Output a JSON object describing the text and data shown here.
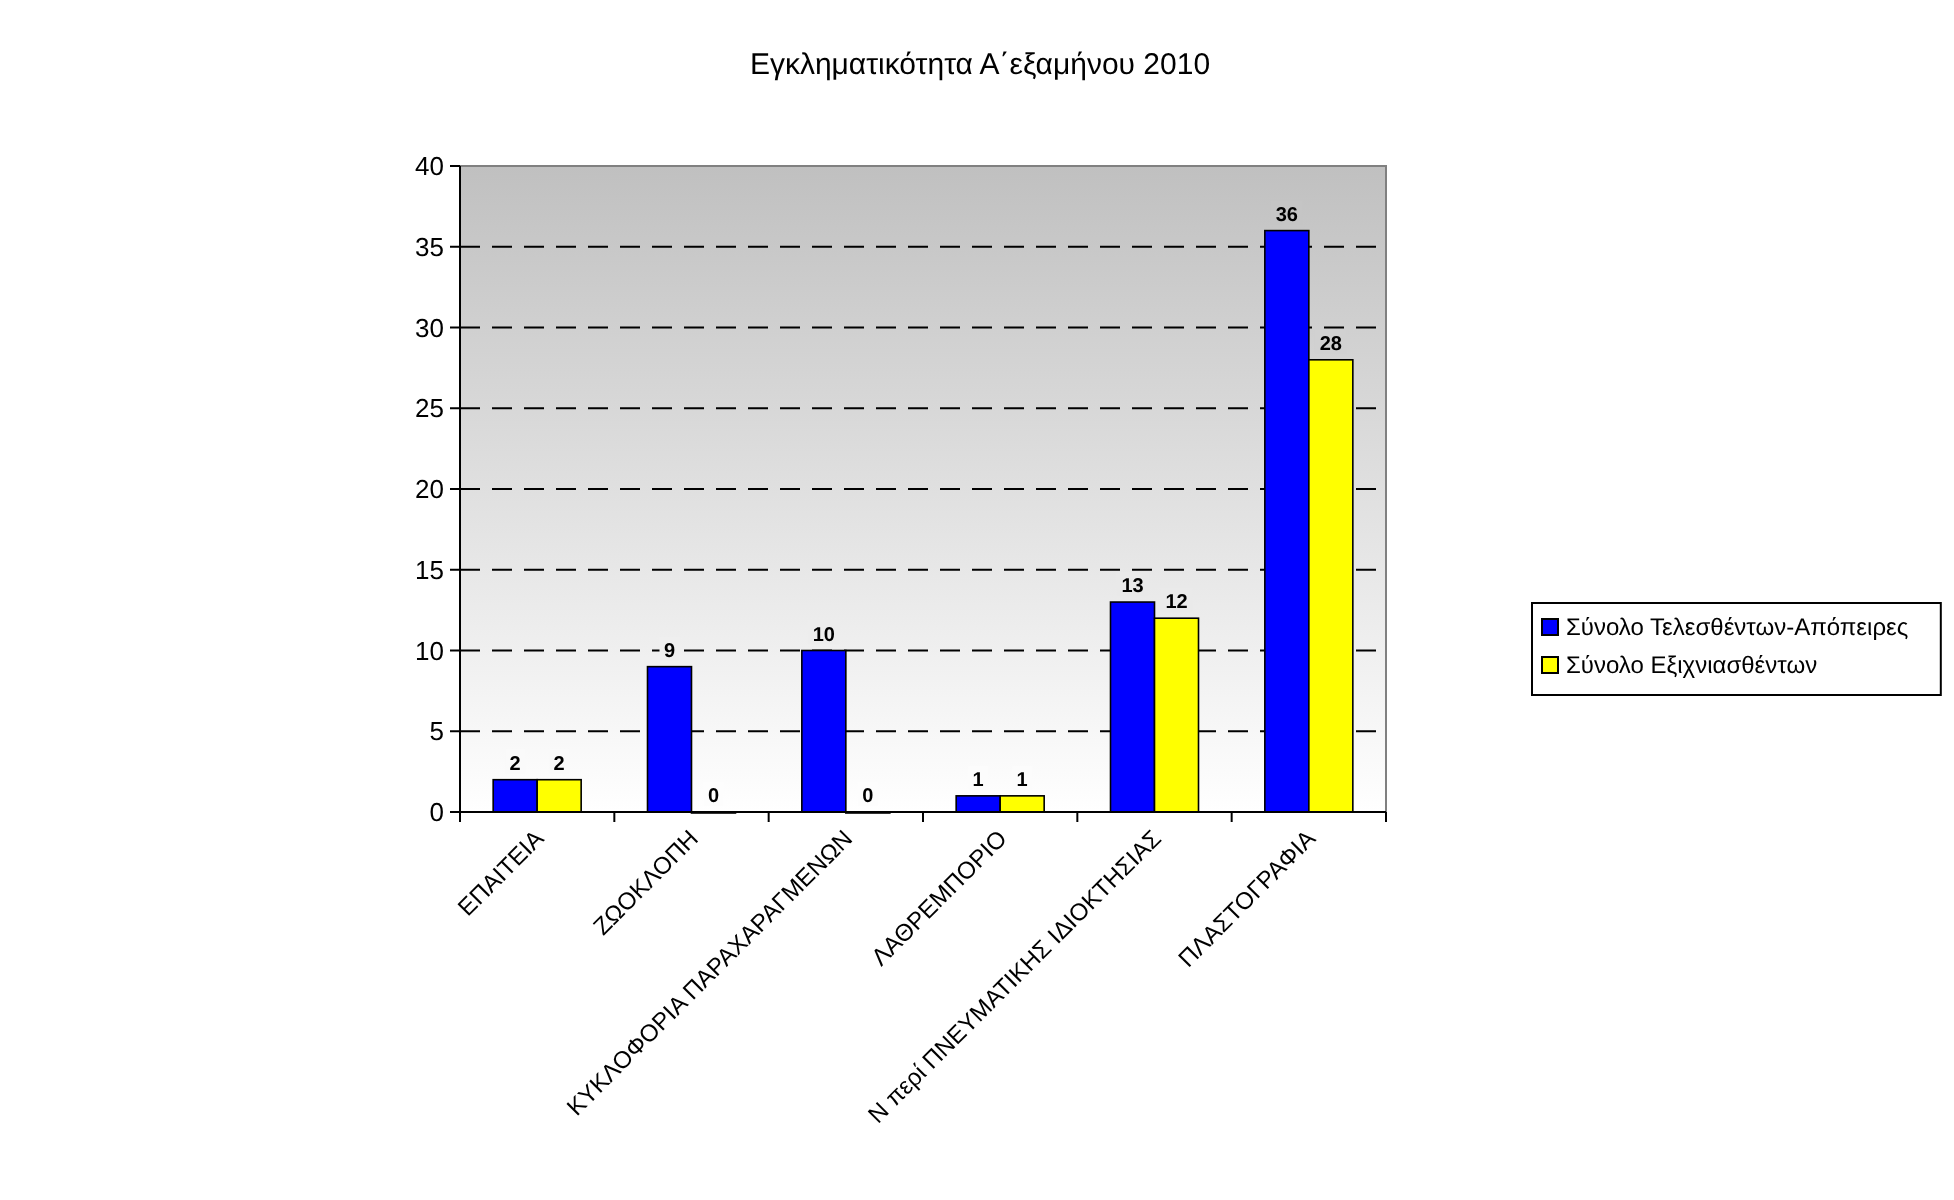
{
  "chart_data": {
    "type": "bar",
    "title": "Εγκληματικότητα Α΄εξαμήνου 2010",
    "categories": [
      "ΕΠΑΙΤΕΙΑ",
      "ΖΩΟΚΛΟΠΗ",
      "ΚΥΚΛΟΦΟΡΙΑ ΠΑΡΑΧΑΡΑΓΜΕΝΩΝ",
      "ΛΑΘΡΕΜΠΟΡΙΟ",
      "Ν περί ΠΝΕΥΜΑΤΙΚΗΣ ΙΔΙΟΚΤΗΣΙΑΣ",
      "ΠΛΑΣΤΟΓΡΑΦΙΑ"
    ],
    "series": [
      {
        "name": "Σύνολο Τελεσθέντων-Απόπειρες",
        "color": "#0000ff",
        "values": [
          2,
          9,
          10,
          1,
          13,
          36
        ]
      },
      {
        "name": "Σύνολο Εξιχνιασθέντων",
        "color": "#ffff00",
        "values": [
          2,
          0,
          0,
          1,
          12,
          28
        ]
      }
    ],
    "ylim": [
      0,
      40
    ],
    "yticks": [
      0,
      5,
      10,
      15,
      20,
      25,
      30,
      35,
      40
    ],
    "grid": "y",
    "line_style": "dashed",
    "legend": "right",
    "data_labels": true
  }
}
